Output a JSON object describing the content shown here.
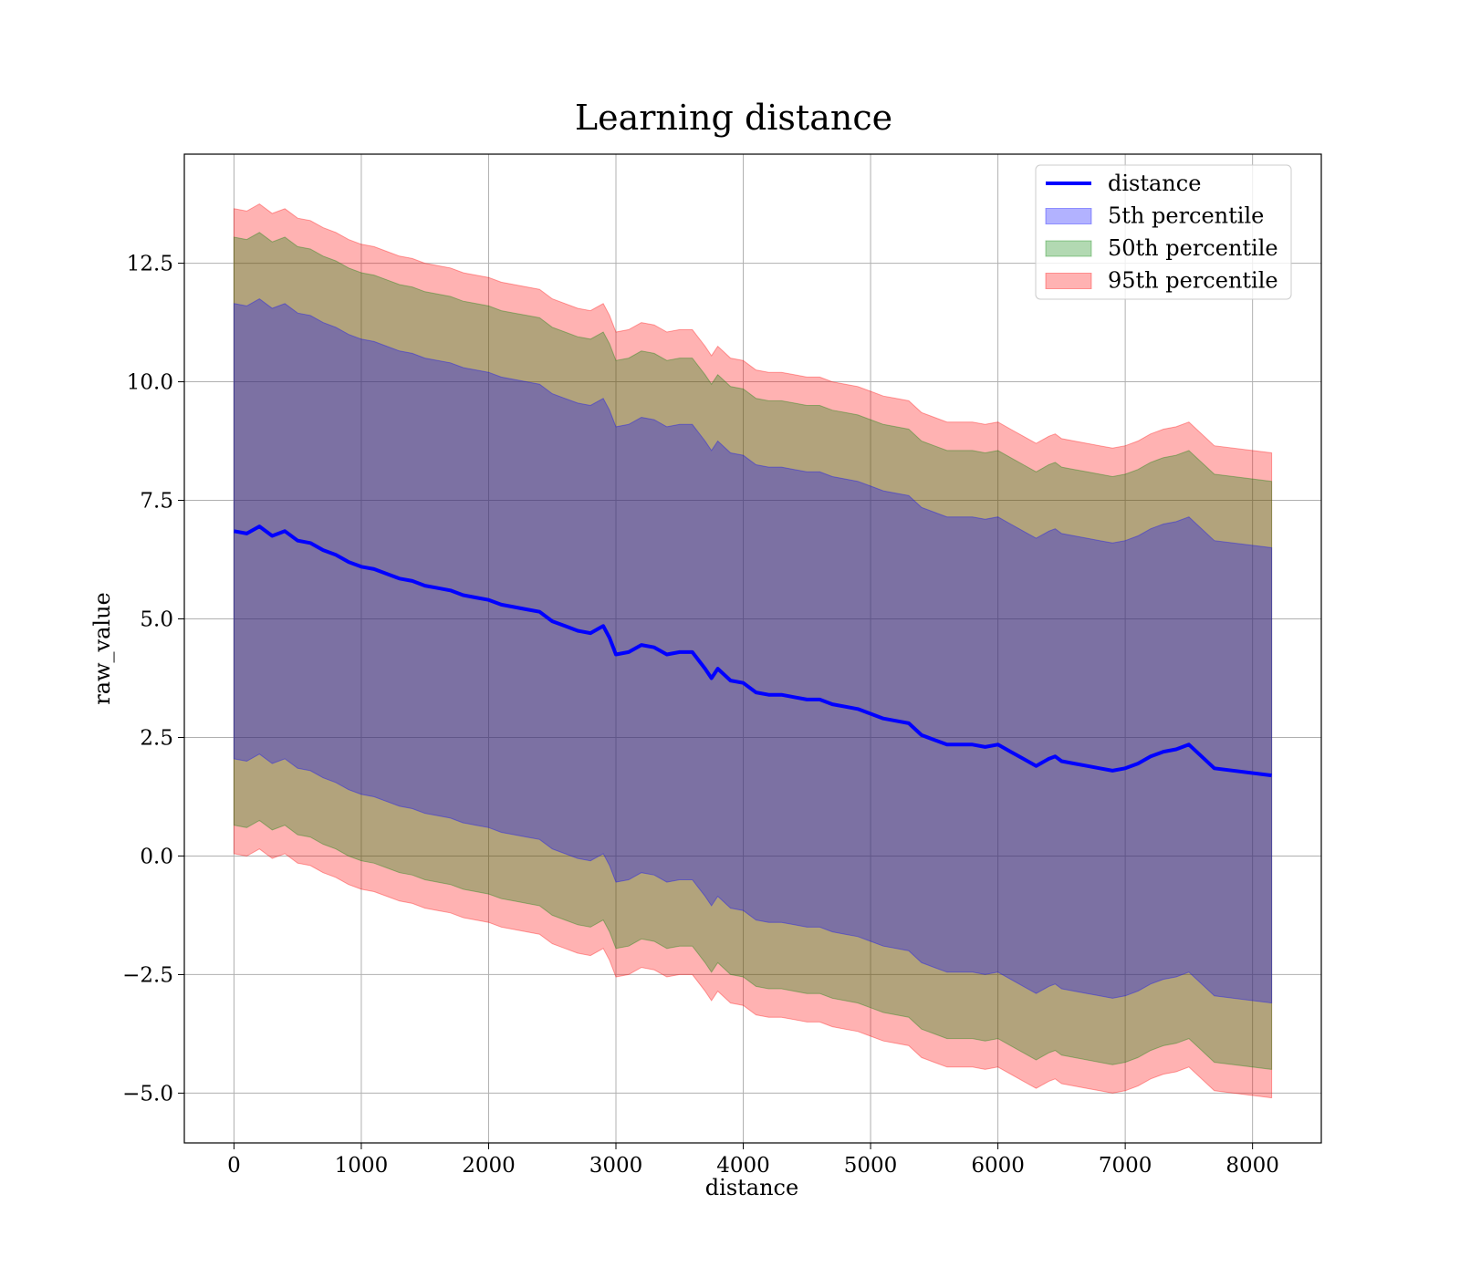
{
  "chart_data": {
    "type": "line",
    "title": "Learning distance",
    "xlabel": "distance",
    "ylabel": "raw_value",
    "xlim": [
      -390,
      8540
    ],
    "ylim": [
      -6.05,
      14.8
    ],
    "grid": true,
    "legend_position": "top-right",
    "x_ticks": [
      0,
      1000,
      2000,
      3000,
      4000,
      5000,
      6000,
      7000,
      8000
    ],
    "x_tick_labels": [
      "0",
      "1000",
      "2000",
      "3000",
      "4000",
      "5000",
      "6000",
      "7000",
      "8000"
    ],
    "y_ticks": [
      -5.0,
      -2.5,
      0.0,
      2.5,
      5.0,
      7.5,
      10.0,
      12.5
    ],
    "y_tick_labels": [
      "−5.0",
      "−2.5",
      "0.0",
      "2.5",
      "5.0",
      "7.5",
      "10.0",
      "12.5"
    ],
    "x": [
      0,
      100,
      200,
      300,
      400,
      500,
      600,
      700,
      800,
      900,
      1000,
      1100,
      1200,
      1300,
      1400,
      1500,
      1600,
      1700,
      1800,
      1900,
      2000,
      2100,
      2200,
      2300,
      2400,
      2500,
      2600,
      2700,
      2800,
      2900,
      2950,
      3000,
      3100,
      3200,
      3300,
      3400,
      3500,
      3600,
      3700,
      3750,
      3800,
      3900,
      4000,
      4100,
      4200,
      4300,
      4400,
      4500,
      4600,
      4700,
      4800,
      4900,
      5000,
      5100,
      5200,
      5300,
      5400,
      5500,
      5600,
      5700,
      5800,
      5900,
      6000,
      6100,
      6200,
      6300,
      6400,
      6450,
      6500,
      6600,
      6700,
      6800,
      6900,
      7000,
      7100,
      7200,
      7300,
      7400,
      7500,
      7700,
      8150
    ],
    "series": [
      {
        "name": "distance",
        "kind": "line",
        "color": "#0000ff",
        "values": [
          6.85,
          6.8,
          6.95,
          6.75,
          6.85,
          6.65,
          6.6,
          6.45,
          6.35,
          6.2,
          6.1,
          6.05,
          5.95,
          5.85,
          5.8,
          5.7,
          5.65,
          5.6,
          5.5,
          5.45,
          5.4,
          5.3,
          5.25,
          5.2,
          5.15,
          4.95,
          4.85,
          4.75,
          4.7,
          4.85,
          4.6,
          4.25,
          4.3,
          4.45,
          4.4,
          4.25,
          4.3,
          4.3,
          3.95,
          3.75,
          3.95,
          3.7,
          3.65,
          3.45,
          3.4,
          3.4,
          3.35,
          3.3,
          3.3,
          3.2,
          3.15,
          3.1,
          3.0,
          2.9,
          2.85,
          2.8,
          2.55,
          2.45,
          2.35,
          2.35,
          2.35,
          2.3,
          2.35,
          2.2,
          2.05,
          1.9,
          2.05,
          2.1,
          2.0,
          1.95,
          1.9,
          1.85,
          1.8,
          1.85,
          1.95,
          2.1,
          2.2,
          2.25,
          2.35,
          1.85,
          1.7
        ]
      },
      {
        "name": "5th percentile",
        "kind": "band",
        "color": "#0000ff",
        "offset": 4.8
      },
      {
        "name": "50th percentile",
        "kind": "band",
        "color": "#008000",
        "offset": 6.2
      },
      {
        "name": "95th percentile",
        "kind": "band",
        "color": "#ff0000",
        "offset": 6.8
      }
    ]
  }
}
